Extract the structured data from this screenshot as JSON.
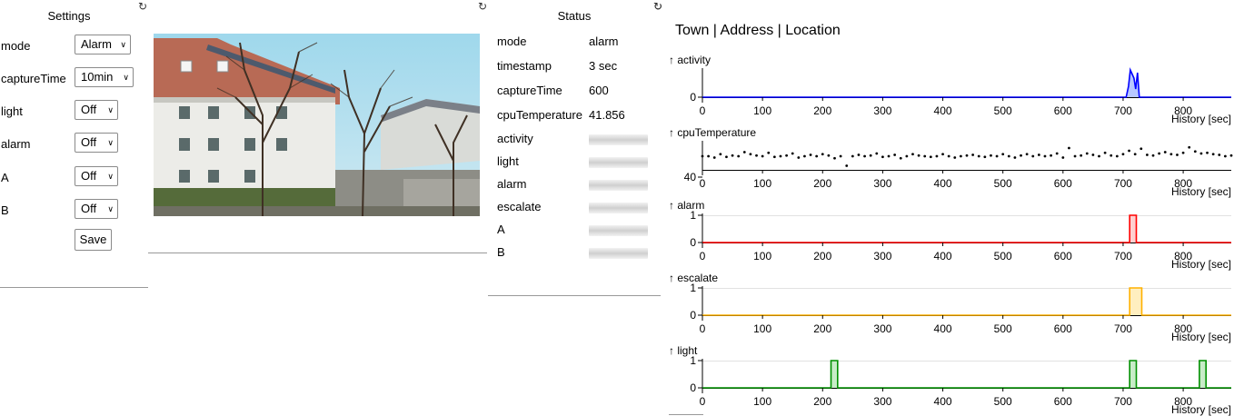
{
  "settings": {
    "title": "Settings",
    "rows": [
      {
        "label": "mode",
        "value": "Alarm"
      },
      {
        "label": "captureTime",
        "value": "10min"
      },
      {
        "label": "light",
        "value": "Off"
      },
      {
        "label": "alarm",
        "value": "Off"
      },
      {
        "label": "A",
        "value": "Off"
      },
      {
        "label": "B",
        "value": "Off"
      }
    ],
    "save_label": "Save"
  },
  "refresh_glyph": "↻",
  "status": {
    "title": "Status",
    "rows": [
      {
        "key": "mode",
        "value": "alarm"
      },
      {
        "key": "timestamp",
        "value": "3 sec"
      },
      {
        "key": "captureTime",
        "value": "600"
      },
      {
        "key": "cpuTemperature",
        "value": "41.856"
      },
      {
        "key": "activity",
        "value": null
      },
      {
        "key": "light",
        "value": null
      },
      {
        "key": "alarm",
        "value": null
      },
      {
        "key": "escalate",
        "value": null
      },
      {
        "key": "A",
        "value": null
      },
      {
        "key": "B",
        "value": null
      }
    ]
  },
  "charts": {
    "location_title": "Town | Address | Location"
  },
  "chart_data": [
    {
      "type": "line",
      "title": "↑ activity",
      "xlabel": "History [sec]",
      "ylabel": "activity",
      "color": "#0000ff",
      "fill": "#b8c8ff",
      "x_ticks": [
        0,
        100,
        200,
        300,
        400,
        500,
        600,
        700,
        800
      ],
      "xlim": [
        0,
        880
      ],
      "y_ticks": [
        0
      ],
      "x": [
        0,
        705,
        709,
        712,
        718,
        721,
        724,
        727,
        730,
        880
      ],
      "y": [
        0,
        0,
        0.4,
        1,
        0.7,
        0.3,
        0.9,
        0,
        0,
        0
      ]
    },
    {
      "type": "line",
      "title": "↑ cpuTemperature",
      "xlabel": "History [sec]",
      "ylabel": "cpuTemperature",
      "color": "#000000",
      "x_ticks": [
        0,
        100,
        200,
        300,
        400,
        500,
        600,
        700,
        800
      ],
      "xlim": [
        0,
        880
      ],
      "y_ticks": [
        40
      ],
      "x": [
        0,
        10,
        20,
        30,
        40,
        50,
        60,
        70,
        80,
        90,
        100,
        110,
        120,
        130,
        140,
        150,
        160,
        170,
        180,
        190,
        200,
        210,
        220,
        230,
        240,
        250,
        260,
        270,
        280,
        290,
        300,
        310,
        320,
        330,
        340,
        350,
        360,
        370,
        380,
        390,
        400,
        410,
        420,
        430,
        440,
        450,
        460,
        470,
        480,
        490,
        500,
        510,
        520,
        530,
        540,
        550,
        560,
        570,
        580,
        590,
        600,
        610,
        620,
        630,
        640,
        650,
        660,
        670,
        680,
        690,
        700,
        710,
        720,
        730,
        740,
        750,
        760,
        770,
        780,
        790,
        800,
        810,
        820,
        830,
        840,
        850,
        860,
        870,
        880
      ],
      "y": [
        42,
        42,
        41.8,
        42.3,
        41.9,
        42.1,
        42,
        42.6,
        42.3,
        42.1,
        42,
        42.5,
        41.9,
        42,
        42.1,
        42.4,
        41.8,
        42,
        42.2,
        42,
        42.3,
        42.1,
        41.7,
        42,
        40.6,
        42,
        42.2,
        42,
        42.1,
        42.4,
        41.9,
        42,
        42.2,
        41.7,
        42,
        42.3,
        42.1,
        42,
        41.9,
        42,
        42.3,
        42,
        41.8,
        42,
        42.1,
        42.2,
        42,
        41.9,
        42.1,
        42,
        42.3,
        42,
        41.8,
        42.1,
        42.3,
        42,
        42.2,
        42,
        42.1,
        42.4,
        41.8,
        43.2,
        42,
        42.1,
        42.4,
        42.2,
        42,
        42.5,
        42.1,
        42,
        42.3,
        42.8,
        42.3,
        43.1,
        42.2,
        42.1,
        42.4,
        42.6,
        42.3,
        42.2,
        42.5,
        43.3,
        42.7,
        42.4,
        42.5,
        42.3,
        42.2,
        42,
        42.1
      ]
    },
    {
      "type": "line",
      "title": "↑ alarm",
      "xlabel": "History [sec]",
      "ylabel": "alarm",
      "color": "#ff0000",
      "fill": "#ffd0d0",
      "x_ticks": [
        0,
        100,
        200,
        300,
        400,
        500,
        600,
        700,
        800
      ],
      "xlim": [
        0,
        880
      ],
      "y_ticks": [
        0,
        1
      ],
      "x": [
        0,
        711,
        711,
        722,
        722,
        880
      ],
      "y": [
        0,
        0,
        1,
        1,
        0,
        0
      ]
    },
    {
      "type": "line",
      "title": "↑ escalate",
      "xlabel": "History [sec]",
      "ylabel": "escalate",
      "color": "#ffb000",
      "fill": "#ffefc0",
      "x_ticks": [
        0,
        100,
        200,
        300,
        400,
        500,
        600,
        700,
        800
      ],
      "xlim": [
        0,
        880
      ],
      "y_ticks": [
        0,
        1
      ],
      "x": [
        0,
        711,
        711,
        731,
        731,
        880
      ],
      "y": [
        0,
        0,
        1,
        1,
        0,
        0
      ]
    },
    {
      "type": "line",
      "title": "↑ light",
      "xlabel": "History [sec]",
      "ylabel": "light",
      "color": "#009000",
      "fill": "#c8ecc8",
      "x_ticks": [
        0,
        100,
        200,
        300,
        400,
        500,
        600,
        700,
        800
      ],
      "xlim": [
        0,
        880
      ],
      "y_ticks": [
        0,
        1
      ],
      "x": [
        0,
        214,
        214,
        225,
        225,
        711,
        711,
        722,
        722,
        827,
        827,
        838,
        838,
        880
      ],
      "y": [
        0,
        0,
        1,
        1,
        0,
        0,
        1,
        1,
        0,
        0,
        1,
        1,
        0,
        0
      ]
    }
  ]
}
